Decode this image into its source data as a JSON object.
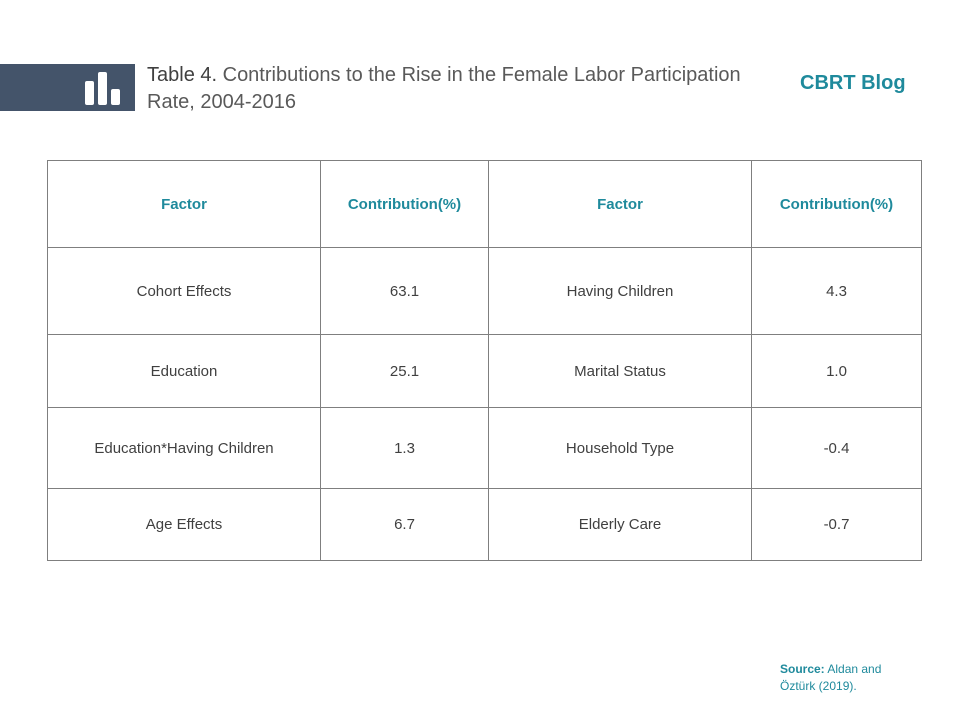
{
  "header": {
    "title_prefix": "Table 4.",
    "title_rest": " Contributions to the Rise in the Female Labor Participation Rate, 2004-2016",
    "brand": "CBRT Blog",
    "logo_icon": "bar-chart-icon",
    "logo_bg_color": "#44546a",
    "accent_color": "#1f8a9c"
  },
  "table": {
    "headers": [
      "Factor",
      "Contribution(%)",
      "Factor",
      "Contribution(%)"
    ],
    "rows": [
      [
        "Cohort Effects",
        "63.1",
        "Having Children",
        "4.3"
      ],
      [
        "Education",
        "25.1",
        "Marital Status",
        "1.0"
      ],
      [
        "Education*Having Children",
        "1.3",
        "Household Type",
        "-0.4"
      ],
      [
        "Age Effects",
        "6.7",
        "Elderly Care",
        "-0.7"
      ]
    ]
  },
  "footer": {
    "source_label": "Source:",
    "source_text": " Aldan and Öztürk (2019)."
  }
}
